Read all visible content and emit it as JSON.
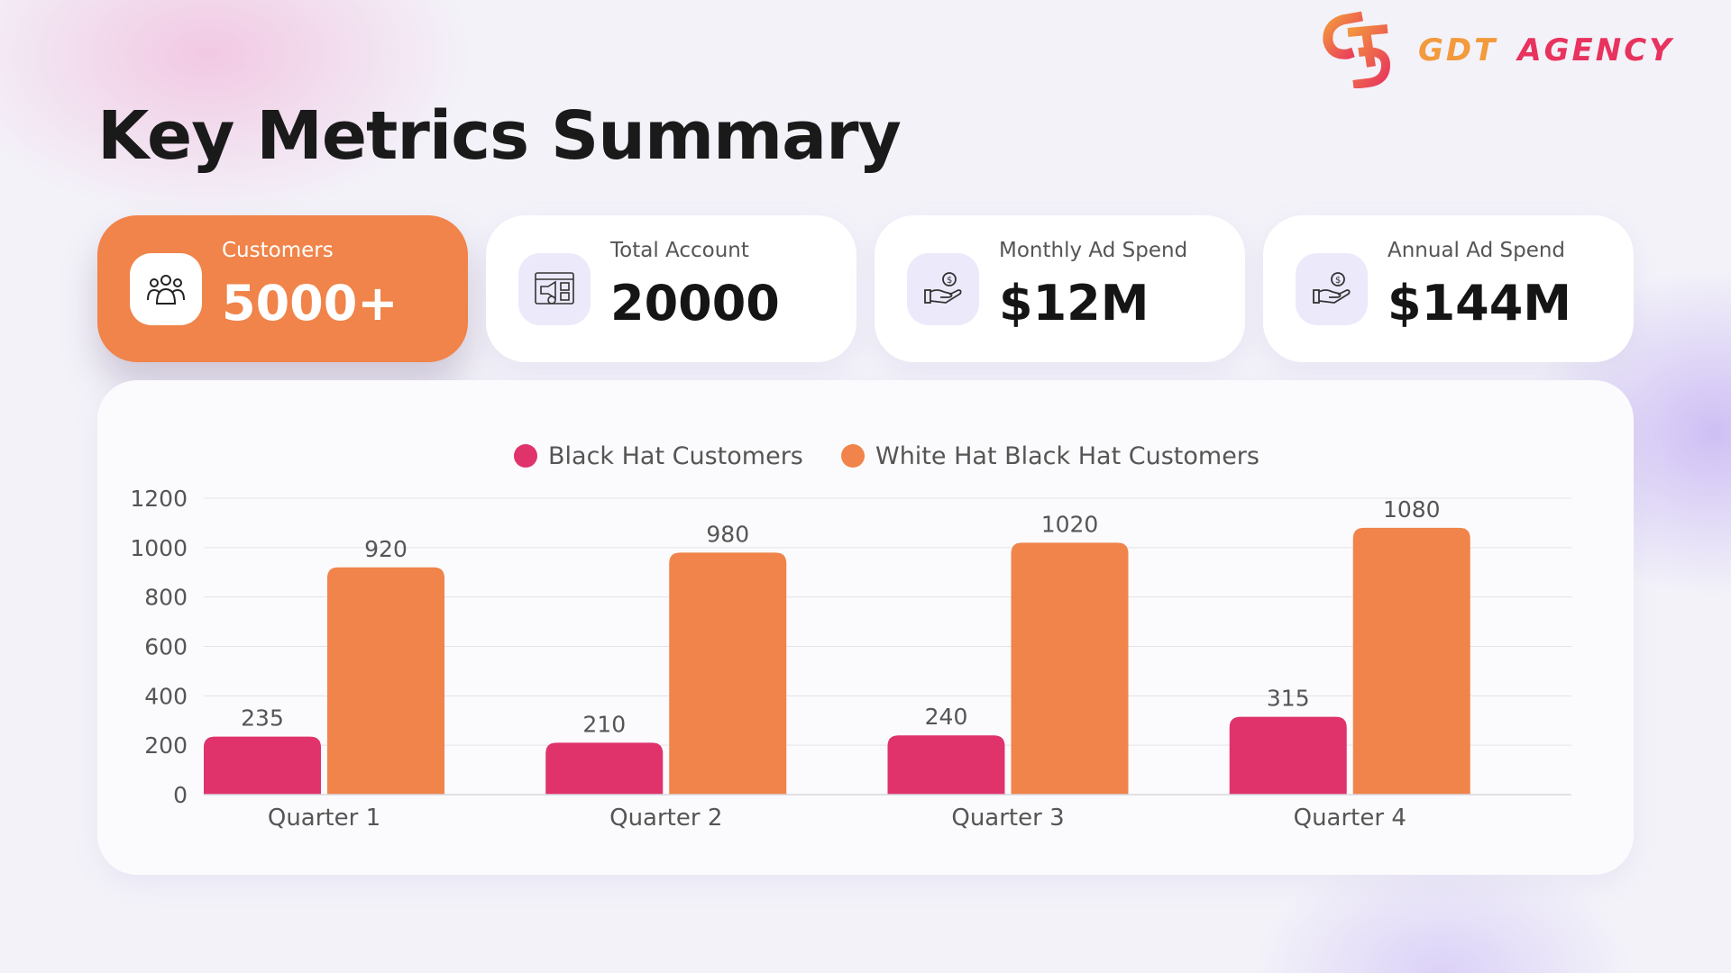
{
  "brand": {
    "name_part1": "GDT",
    "name_part2": "AGENCY"
  },
  "page_title": "Key Metrics Summary",
  "cards": [
    {
      "label": "Customers",
      "value": "5000+",
      "icon": "people-icon"
    },
    {
      "label": "Total Account",
      "value": "20000",
      "icon": "megaphone-dashboard-icon"
    },
    {
      "label": "Monthly Ad Spend",
      "value": "$12M",
      "icon": "hand-dollar-icon"
    },
    {
      "label": "Annual Ad Spend",
      "value": "$144M",
      "icon": "hand-dollar-icon"
    }
  ],
  "colors": {
    "orange": "#F0844A",
    "pink": "#E0336B"
  },
  "chart_data": {
    "type": "bar",
    "categories": [
      "Quarter 1",
      "Quarter 2",
      "Quarter 3",
      "Quarter 4"
    ],
    "series": [
      {
        "name": "Black Hat Customers",
        "color": "#E0336B",
        "values": [
          235,
          210,
          240,
          315
        ]
      },
      {
        "name": "White Hat Black Hat Customers",
        "color": "#F0844A",
        "values": [
          920,
          980,
          1020,
          1080
        ]
      }
    ],
    "ylim": [
      0,
      1200
    ],
    "yticks": [
      0,
      200,
      400,
      600,
      800,
      1000,
      1200
    ],
    "grid": true,
    "legend": "top"
  }
}
